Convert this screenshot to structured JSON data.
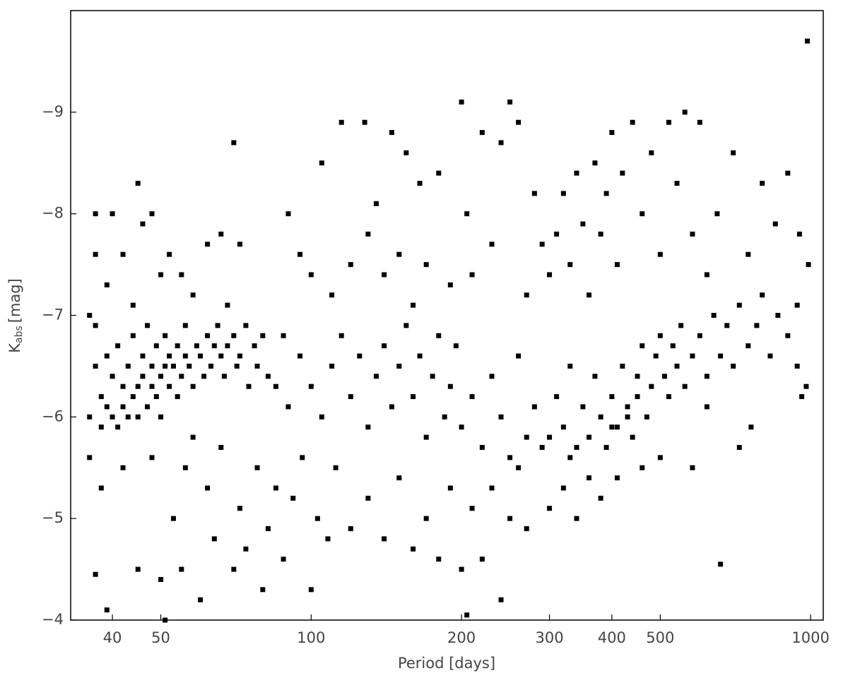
{
  "chart_data": {
    "type": "scatter",
    "xscale": "log",
    "color": "#000000",
    "xlabel": "Period [days]",
    "ylabel": {
      "main": "K",
      "sub": "abs",
      "unit": "[mag]"
    },
    "xlim": [
      33,
      1060
    ],
    "ylim": [
      -4,
      -10
    ],
    "xticks": [
      40,
      50,
      100,
      200,
      300,
      400,
      500,
      1000
    ],
    "yticks": [
      {
        "value": -9,
        "label": "−9"
      },
      {
        "value": -8,
        "label": "−8"
      },
      {
        "value": -7,
        "label": "−7"
      },
      {
        "value": -6,
        "label": "−6"
      },
      {
        "value": -5,
        "label": "−5"
      },
      {
        "value": -4,
        "label": "−4"
      }
    ],
    "x": [
      36,
      37,
      37,
      38,
      38,
      39,
      39,
      40,
      40,
      41,
      41,
      42,
      42,
      43,
      43,
      44,
      44,
      45,
      45,
      46,
      46,
      47,
      47,
      48,
      48,
      49,
      49,
      50,
      50,
      51,
      51,
      52,
      52,
      53,
      54,
      54,
      55,
      56,
      56,
      57,
      58,
      59,
      60,
      61,
      62,
      63,
      64,
      65,
      66,
      67,
      68,
      70,
      71,
      72,
      74,
      75,
      77,
      78,
      80,
      82,
      36,
      37,
      37,
      39,
      40,
      42,
      44,
      45,
      46,
      48,
      50,
      52,
      55,
      58,
      62,
      66,
      70,
      72,
      68,
      36,
      37,
      38,
      39,
      42,
      45,
      48,
      50,
      51,
      53,
      55,
      56,
      58,
      60,
      62,
      64,
      66,
      70,
      72,
      74,
      78,
      80,
      82,
      85,
      88,
      92,
      96,
      100,
      103,
      108,
      112,
      85,
      88,
      90,
      95,
      100,
      105,
      110,
      115,
      120,
      125,
      130,
      135,
      140,
      145,
      150,
      155,
      160,
      165,
      170,
      175,
      180,
      185,
      190,
      195,
      200,
      210,
      220,
      230,
      240,
      250,
      260,
      270,
      280,
      290,
      120,
      130,
      140,
      150,
      160,
      170,
      180,
      190,
      200,
      205,
      210,
      220,
      230,
      240,
      250,
      260,
      270,
      300,
      320,
      340,
      380,
      410,
      90,
      95,
      100,
      105,
      110,
      115,
      120,
      128,
      130,
      135,
      140,
      145,
      150,
      155,
      160,
      165,
      170,
      180,
      190,
      200,
      205,
      210,
      220,
      230,
      240,
      250,
      260,
      270,
      280,
      290,
      300,
      310,
      320,
      330,
      340,
      350,
      360,
      370,
      380,
      390,
      400,
      410,
      420,
      440,
      460,
      480,
      500,
      520,
      540,
      560,
      580,
      600,
      620,
      650,
      700,
      750,
      800,
      850,
      900,
      950,
      985,
      990,
      300,
      310,
      320,
      330,
      340,
      350,
      360,
      370,
      380,
      390,
      400,
      410,
      420,
      430,
      440,
      450,
      460,
      470,
      480,
      490,
      500,
      510,
      520,
      530,
      540,
      550,
      560,
      580,
      600,
      620,
      640,
      660,
      680,
      700,
      720,
      750,
      780,
      800,
      830,
      860,
      900,
      940,
      980,
      960,
      940,
      660,
      720,
      760,
      620,
      580,
      500,
      460,
      360,
      330,
      400,
      430,
      450
    ],
    "values": [
      -6.0,
      -6.5,
      -6.9,
      -6.2,
      -5.9,
      -6.6,
      -6.1,
      -6.0,
      -6.4,
      -5.9,
      -6.7,
      -6.1,
      -6.3,
      -6.0,
      -6.5,
      -6.2,
      -6.8,
      -6.3,
      -6.0,
      -6.4,
      -6.6,
      -6.1,
      -6.9,
      -6.3,
      -6.5,
      -6.2,
      -6.7,
      -6.4,
      -6.0,
      -6.5,
      -6.8,
      -6.3,
      -6.6,
      -6.5,
      -6.7,
      -6.2,
      -6.4,
      -6.6,
      -6.9,
      -6.5,
      -6.3,
      -6.7,
      -6.6,
      -6.4,
      -6.8,
      -6.5,
      -6.7,
      -6.9,
      -6.6,
      -6.4,
      -6.7,
      -6.8,
      -6.5,
      -6.6,
      -6.9,
      -6.3,
      -6.7,
      -6.5,
      -6.8,
      -6.4,
      -7.0,
      -7.6,
      -8.0,
      -7.3,
      -8.0,
      -7.6,
      -7.1,
      -8.3,
      -7.9,
      -8.0,
      -7.4,
      -7.6,
      -7.4,
      -7.2,
      -7.7,
      -7.8,
      -8.7,
      -7.7,
      -7.1,
      -5.6,
      -4.45,
      -5.3,
      -4.1,
      -5.5,
      -4.5,
      -5.6,
      -4.4,
      -4.0,
      -5.0,
      -4.5,
      -5.5,
      -5.8,
      -4.2,
      -5.3,
      -4.8,
      -5.7,
      -4.5,
      -5.1,
      -4.7,
      -5.5,
      -4.3,
      -4.9,
      -5.3,
      -4.6,
      -5.2,
      -5.6,
      -4.3,
      -5.0,
      -4.8,
      -5.5,
      -6.3,
      -6.8,
      -6.1,
      -6.6,
      -6.3,
      -6.0,
      -6.5,
      -6.8,
      -6.2,
      -6.6,
      -5.9,
      -6.4,
      -6.7,
      -6.1,
      -6.5,
      -6.9,
      -6.2,
      -6.6,
      -5.8,
      -6.4,
      -6.8,
      -6.0,
      -6.3,
      -6.7,
      -5.9,
      -6.2,
      -5.7,
      -6.4,
      -6.0,
      -5.6,
      -6.6,
      -5.8,
      -6.1,
      -5.7,
      -4.9,
      -5.2,
      -4.8,
      -5.4,
      -4.7,
      -5.0,
      -4.6,
      -5.3,
      -4.5,
      -4.05,
      -5.1,
      -4.6,
      -5.3,
      -4.2,
      -5.0,
      -5.5,
      -4.9,
      -5.1,
      -5.3,
      -5.0,
      -5.2,
      -5.4,
      -8.0,
      -7.6,
      -7.4,
      -8.5,
      -7.2,
      -8.9,
      -7.5,
      -8.9,
      -7.8,
      -8.1,
      -7.4,
      -8.8,
      -7.6,
      -8.6,
      -7.1,
      -8.3,
      -7.5,
      -8.4,
      -7.3,
      -9.1,
      -8.0,
      -7.4,
      -8.8,
      -7.7,
      -8.7,
      -9.1,
      -8.9,
      -7.2,
      -8.2,
      -7.7,
      -7.4,
      -7.8,
      -8.2,
      -7.5,
      -8.4,
      -7.9,
      -7.2,
      -8.5,
      -7.8,
      -8.2,
      -8.8,
      -7.5,
      -8.4,
      -8.9,
      -8.0,
      -8.6,
      -7.6,
      -8.9,
      -8.3,
      -9.0,
      -7.8,
      -8.9,
      -7.4,
      -8.0,
      -8.6,
      -7.6,
      -8.3,
      -7.9,
      -8.4,
      -7.8,
      -9.7,
      -7.5,
      -5.8,
      -6.2,
      -5.9,
      -6.5,
      -5.7,
      -6.1,
      -5.8,
      -6.4,
      -6.0,
      -5.7,
      -6.2,
      -5.9,
      -6.5,
      -6.1,
      -5.8,
      -6.4,
      -6.7,
      -6.0,
      -6.3,
      -6.6,
      -6.8,
      -6.4,
      -6.2,
      -6.7,
      -6.5,
      -6.9,
      -6.3,
      -6.6,
      -6.8,
      -6.4,
      -7.0,
      -6.6,
      -6.9,
      -6.5,
      -7.1,
      -6.7,
      -6.9,
      -7.2,
      -6.6,
      -7.0,
      -6.8,
      -7.1,
      -6.3,
      -6.2,
      -6.5,
      -4.55,
      -5.7,
      -5.9,
      -6.1,
      -5.5,
      -5.6,
      -5.5,
      -5.4,
      -5.6,
      -5.9,
      -6.0,
      -6.2
    ]
  }
}
